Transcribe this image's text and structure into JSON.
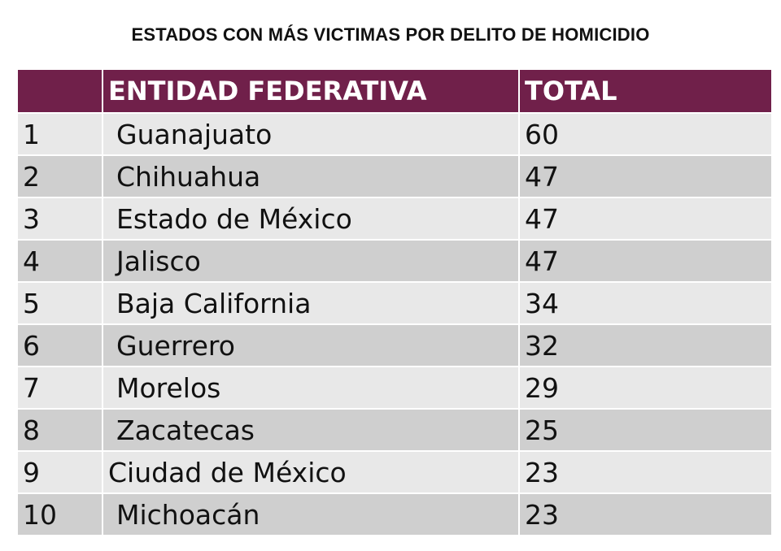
{
  "title": "ESTADOS CON MÁS VICTIMAS POR DELITO DE HOMICIDIO",
  "colors": {
    "header_bg": "#70204a",
    "header_text": "#ffffff",
    "row_light": "#e8e8e8",
    "row_dark": "#cfcfcf"
  },
  "table": {
    "headers": [
      "",
      "ENTIDAD FEDERATIVA",
      "TOTAL"
    ],
    "rows": [
      {
        "rank": "1",
        "state": "Guanajuato",
        "total": "60"
      },
      {
        "rank": "2",
        "state": "Chihuahua",
        "total": "47"
      },
      {
        "rank": "3",
        "state": "Estado de México",
        "total": "47"
      },
      {
        "rank": "4",
        "state": "Jalisco",
        "total": "47"
      },
      {
        "rank": "5",
        "state": "Baja California",
        "total": "34"
      },
      {
        "rank": "6",
        "state": "Guerrero",
        "total": "32"
      },
      {
        "rank": "7",
        "state": "Morelos",
        "total": "29"
      },
      {
        "rank": "8",
        "state": "Zacatecas",
        "total": "25"
      },
      {
        "rank": "9",
        "state": "Ciudad de México",
        "total": "23"
      },
      {
        "rank": "10",
        "state": "Michoacán",
        "total": "23"
      }
    ]
  }
}
